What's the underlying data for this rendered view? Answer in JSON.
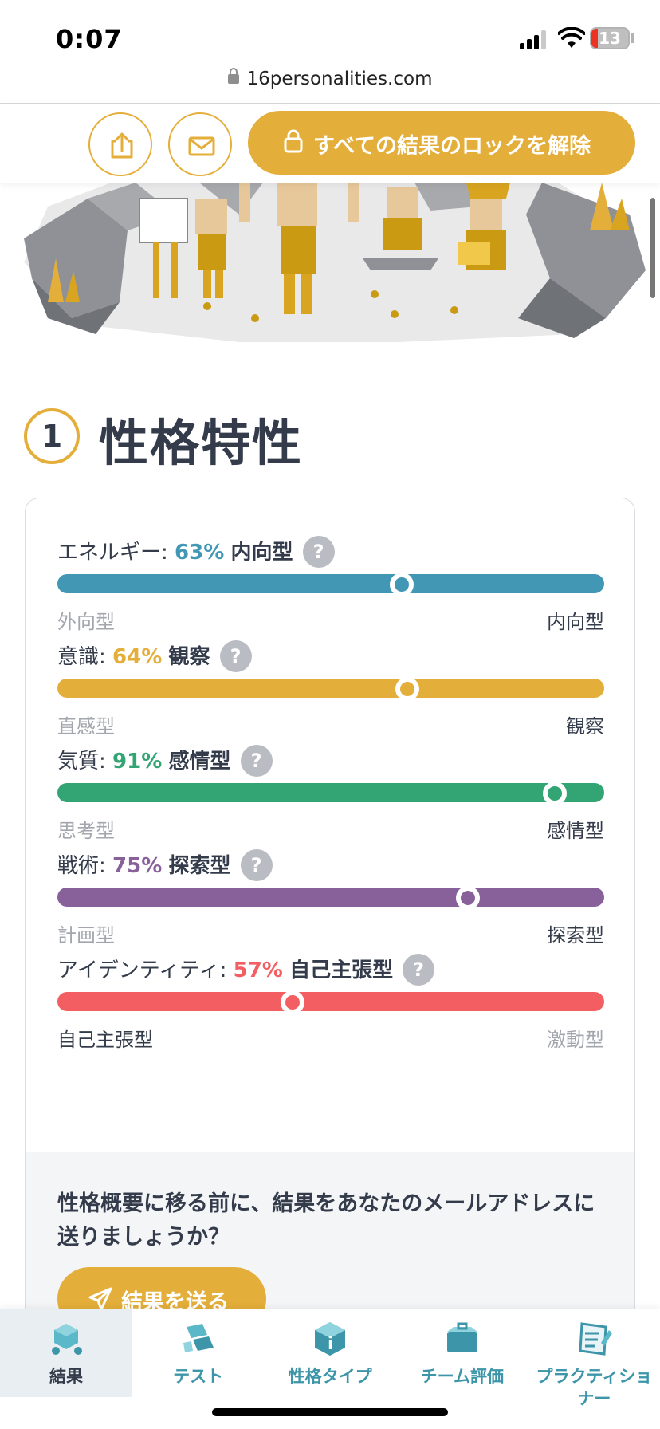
{
  "status": {
    "time": "0:07",
    "battery": "13"
  },
  "browser": {
    "url": "16personalities.com"
  },
  "actions": {
    "share_icon": "share-icon",
    "mail_icon": "mail-icon",
    "unlock_label": "すべての結果のロックを解除"
  },
  "section": {
    "number": "1",
    "title": "性格特性"
  },
  "traits": [
    {
      "name": "エネルギー:",
      "pct": "63%",
      "type": "内向型",
      "left": "外向型",
      "right": "内向型",
      "value": 63,
      "color": "#4298b4",
      "active": "right"
    },
    {
      "name": "意識:",
      "pct": "64%",
      "type": "観察",
      "left": "直感型",
      "right": "観察",
      "value": 64,
      "color": "#e4ae3a",
      "active": "right"
    },
    {
      "name": "気質:",
      "pct": "91%",
      "type": "感情型",
      "left": "思考型",
      "right": "感情型",
      "value": 91,
      "color": "#33a474",
      "active": "right"
    },
    {
      "name": "戦術:",
      "pct": "75%",
      "type": "探索型",
      "left": "計画型",
      "right": "探索型",
      "value": 75,
      "color": "#88619a",
      "active": "right"
    },
    {
      "name": "アイデンティティ:",
      "pct": "57%",
      "type": "自己主張型",
      "left": "自己主張型",
      "right": "激動型",
      "value": 43,
      "color": "#f25e62",
      "active": "left"
    }
  ],
  "help_label": "?",
  "email": {
    "prompt": "性格概要に移る前に、結果をあなたのメールアドレスに送りましょうか？",
    "send_label": "結果を送る"
  },
  "nav": [
    {
      "label": "結果",
      "icon": "results-icon",
      "active": true
    },
    {
      "label": "テスト",
      "icon": "test-icon",
      "active": false
    },
    {
      "label": "性格タイプ",
      "icon": "personality-types-icon",
      "active": false
    },
    {
      "label": "チーム評価",
      "icon": "team-assessment-icon",
      "active": false
    },
    {
      "label": "プラクティショナー",
      "icon": "practitioner-icon",
      "active": false
    }
  ]
}
